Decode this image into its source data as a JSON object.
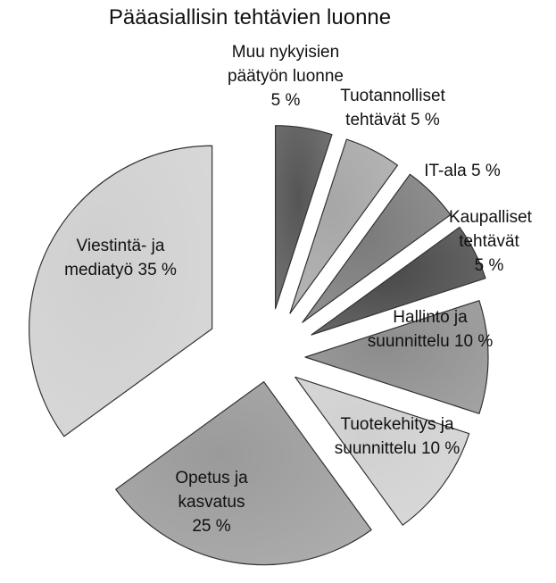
{
  "chart_data": {
    "type": "pie",
    "title": "Pääasiallisin tehtävien luonne",
    "categories": [
      "Muu nykyisien päätyön luonne",
      "Tuotannolliset tehtävät",
      "IT-ala",
      "Kaupalliset tehtävät",
      "Hallinto ja suunnittelu",
      "Tuotekehitys ja suunnittelu",
      "Opetus ja kasvatus",
      "Viestintä- ja mediatyö"
    ],
    "values": [
      5,
      5,
      5,
      5,
      10,
      10,
      25,
      35
    ],
    "value_labels": [
      "5 %",
      "5 %",
      "5 %",
      "5 %",
      "10 %",
      "10 %",
      "25 %",
      "35 %"
    ],
    "colors": [
      "#555555",
      "#a6a6a6",
      "#7a7a7a",
      "#484848",
      "#8c8c8c",
      "#d0d0d0",
      "#9a9a9a",
      "#cfcfcf"
    ]
  }
}
